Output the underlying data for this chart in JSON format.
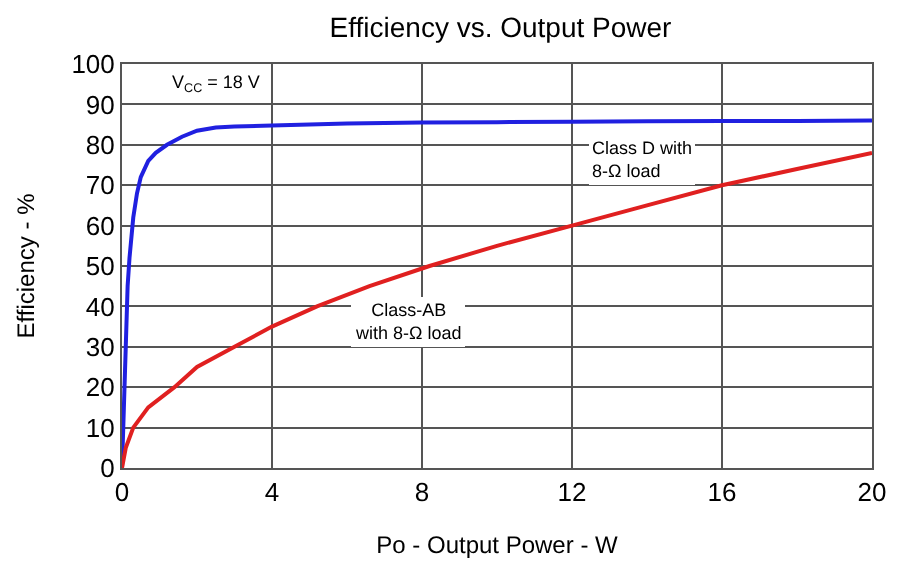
{
  "chart_data": {
    "type": "line",
    "title": "Efficiency vs. Output Power",
    "xlabel": "Po - Output Power - W",
    "ylabel": "Efficiency - %",
    "xlim": [
      0,
      20
    ],
    "xticks": [
      0,
      4,
      8,
      12,
      16,
      20
    ],
    "ylim": [
      0,
      100
    ],
    "yticks": [
      0,
      10,
      20,
      30,
      40,
      50,
      60,
      70,
      80,
      90,
      100
    ],
    "grid": true,
    "marker": "none",
    "line_style": "solid",
    "series": [
      {
        "color": "#2020e0",
        "x": [
          0,
          0.05,
          0.1,
          0.15,
          0.2,
          0.3,
          0.4,
          0.5,
          0.7,
          0.9,
          1.2,
          1.6,
          2,
          2.5,
          3,
          4,
          6,
          8,
          10,
          12,
          14,
          16,
          18,
          20
        ],
        "values": [
          0,
          15,
          30,
          45,
          52,
          62,
          68,
          72,
          76,
          78,
          80,
          82,
          83.5,
          84.3,
          84.5,
          84.8,
          85.3,
          85.5,
          85.6,
          85.7,
          85.8,
          85.9,
          85.9,
          86
        ]
      },
      {
        "color": "#e02020",
        "x": [
          0,
          0.1,
          0.3,
          0.7,
          1.4,
          2,
          3,
          4,
          5.2,
          6.6,
          8.2,
          10,
          12,
          14,
          16,
          18,
          20
        ],
        "values": [
          0,
          5,
          10,
          15,
          20,
          25,
          30,
          35,
          40,
          45,
          50,
          55,
          60,
          65,
          70,
          74,
          78
        ]
      }
    ],
    "annotations": [
      "V$_{CC}$ = 18 V",
      "Class D with\n8-Ω load",
      "Class-AB\nwith 8-Ω load"
    ]
  }
}
